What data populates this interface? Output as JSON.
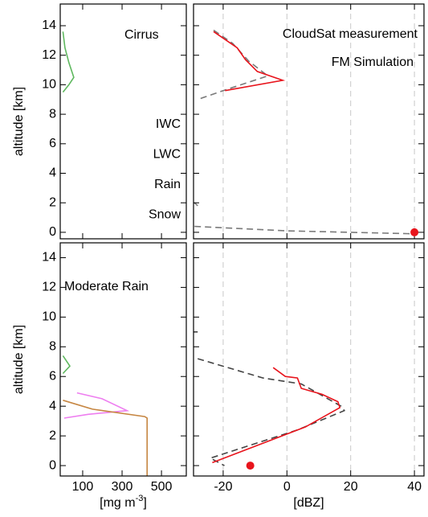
{
  "chart_data": [
    {
      "type": "line",
      "title": "Cirrus",
      "ylabel": "altitude [km]",
      "xlim": [
        -14,
        626
      ],
      "ylim": [
        -0.44,
        15.47
      ],
      "xticks": [
        100,
        300,
        500
      ],
      "yticks": [
        0,
        2,
        4,
        6,
        8,
        10,
        12,
        14
      ],
      "show_xtick_labels": false,
      "show_ytick_labels": true,
      "grid": false,
      "legend": true,
      "series": [
        {
          "name": "IWC",
          "color": "#5fb85f",
          "dashed": false,
          "x": [
            0,
            10,
            30,
            55,
            30,
            0
          ],
          "y": [
            13.6,
            12.5,
            11.5,
            10.5,
            10,
            9.5
          ]
        },
        {
          "name": "LWC",
          "color": "#7b6fb6",
          "dashed": false,
          "x": [],
          "y": []
        },
        {
          "name": "Rain",
          "color": "#c68642",
          "dashed": false,
          "x": [],
          "y": []
        },
        {
          "name": "Snow",
          "color": "#ee7ef0",
          "dashed": false,
          "x": [],
          "y": []
        }
      ],
      "markers": []
    },
    {
      "type": "line",
      "xlim": [
        -29.3,
        43
      ],
      "ylim": [
        -0.44,
        15.47
      ],
      "xticks": [
        -20,
        0,
        20,
        40
      ],
      "yticks": [
        0,
        2,
        4,
        6,
        8,
        10,
        12,
        14
      ],
      "show_xtick_labels": false,
      "show_ytick_labels": false,
      "grid": true,
      "legend": true,
      "series": [
        {
          "name": "CloudSat measurement",
          "color": "#7a7a7a",
          "dashed": true,
          "x": [
            -23,
            -17,
            -12,
            -6,
            -20,
            -28,
            null,
            -29,
            -28,
            null,
            -29,
            0,
            40
          ],
          "y": [
            13.7,
            12.8,
            11.6,
            10.6,
            9.6,
            9.0,
            null,
            2.0,
            1.8,
            null,
            0.4,
            0.1,
            -0.1
          ]
        },
        {
          "name": "FM Simulation",
          "color": "#e8141c",
          "dashed": false,
          "x": [
            -23,
            -15.6,
            -13,
            -9.3,
            -1.3,
            -19.4
          ],
          "y": [
            13.6,
            12.5,
            11.7,
            10.9,
            10.3,
            9.6
          ]
        }
      ],
      "markers": [
        {
          "x": 40,
          "y": 0,
          "color": "#e8141c"
        }
      ]
    },
    {
      "type": "line",
      "title": "Moderate Rain",
      "ylabel": "altitude [km]",
      "xlabel": [
        "[mg m",
        "-3",
        "]"
      ],
      "xlim": [
        -14,
        626
      ],
      "ylim": [
        -0.7,
        15.0
      ],
      "xticks": [
        100,
        300,
        500
      ],
      "yticks": [
        0,
        2,
        4,
        6,
        8,
        10,
        12,
        14
      ],
      "show_xtick_labels": true,
      "show_ytick_labels": true,
      "grid": false,
      "legend": false,
      "series": [
        {
          "color": "#5fb85f",
          "dashed": false,
          "x": [
            0,
            35,
            0
          ],
          "y": [
            7.4,
            6.7,
            6.2
          ]
        },
        {
          "color": "#ee7ef0",
          "dashed": false,
          "x": [
            71,
            198,
            325,
            128,
            6
          ],
          "y": [
            4.9,
            4.5,
            3.7,
            3.45,
            3.2
          ]
        },
        {
          "color": "#c68642",
          "dashed": false,
          "x": [
            0,
            150,
            415,
            427,
            427
          ],
          "y": [
            4.4,
            3.8,
            3.3,
            3.2,
            -0.7
          ]
        }
      ],
      "markers": []
    },
    {
      "type": "line",
      "xlabel": [
        "[dBZ]"
      ],
      "xlim": [
        -29.3,
        43
      ],
      "ylim": [
        -0.7,
        15.0
      ],
      "xticks": [
        -20,
        0,
        20,
        40
      ],
      "yticks": [
        0,
        2,
        4,
        6,
        8,
        10,
        12,
        14
      ],
      "show_xtick_labels": true,
      "show_ytick_labels": false,
      "grid": true,
      "legend": false,
      "series": [
        {
          "color": "#444444",
          "dashed": true,
          "x": [
            -29.3,
            -28,
            null,
            -28,
            -7.5,
            4.5,
            17,
            18,
            3.3,
            -24,
            -19.6
          ],
          "y": [
            9,
            9,
            null,
            7.2,
            5.9,
            5.5,
            4.0,
            3.7,
            2.4,
            0.5,
            0
          ]
        },
        {
          "color": "#e8141c",
          "dashed": false,
          "x": [
            -4.3,
            -0.5,
            3.3,
            4.5,
            11,
            16,
            16.6,
            5.8,
            -23.4
          ],
          "y": [
            6.6,
            6.0,
            5.9,
            5.2,
            4.8,
            4.3,
            3.9,
            2.6,
            0.2
          ]
        }
      ],
      "markers": [
        {
          "x": -11.5,
          "y": 0,
          "color": "#e8141c"
        }
      ]
    }
  ]
}
